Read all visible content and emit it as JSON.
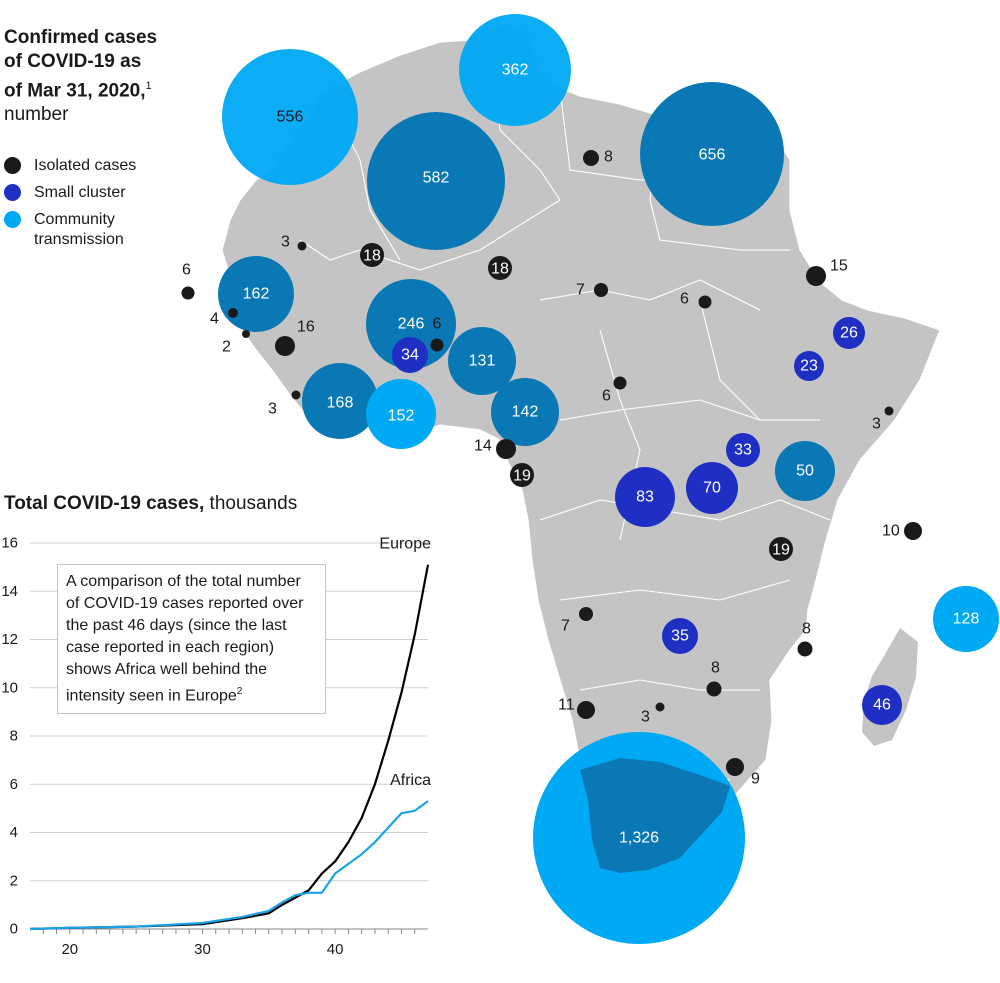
{
  "title": {
    "line1": "Confirmed cases",
    "line2": "of COVID-19 as",
    "line3": "of Mar 31, 2020,",
    "note": "1",
    "unit": "number"
  },
  "legend": [
    {
      "label": "Isolated cases",
      "color": "#1a1a1a"
    },
    {
      "label": "Small cluster",
      "color": "#1f2fc4"
    },
    {
      "label": "Community transmission",
      "color": "#00a9f4"
    }
  ],
  "colors": {
    "land": "#c4c4c4",
    "border": "#ffffff",
    "isolated": "#1a1a1a",
    "cluster": "#1f2fc4",
    "community": "#00a9f4",
    "community_on_land": "#0a78b5",
    "europe_line": "#000000",
    "africa_line": "#1aa3e8"
  },
  "map_labels": {
    "c1": "556",
    "c2": "362",
    "c3": "582",
    "c4": "656",
    "c5": "162",
    "c6": "246",
    "c7": "131",
    "c8": "168",
    "c9": "152",
    "c10": "142",
    "c11": "50",
    "c12": "128",
    "c13": "1,326",
    "s1": "34",
    "s2": "26",
    "s3": "23",
    "s4": "33",
    "s5": "83",
    "s6": "70",
    "s7": "35",
    "s8": "46",
    "i_inside_1": "18",
    "i_inside_2": "18",
    "i_inside_3": "19",
    "i_inside_4": "19",
    "i1": "8",
    "i2": "3",
    "i3": "6",
    "i4": "4",
    "i5": "2",
    "i6": "16",
    "i7": "6",
    "i8": "3",
    "i9": "14",
    "i10": "7",
    "i11": "6",
    "i12": "15",
    "i13": "6",
    "i14": "3",
    "i15": "10",
    "i16": "7",
    "i17": "8",
    "i18": "8",
    "i19": "11",
    "i20": "3",
    "i21": "9"
  },
  "chart": {
    "title_bold": "Total COVID-19 cases,",
    "title_rest": " thousands",
    "annotation": "A comparison of the total number of COVID-19 cases reported over the past 46 days (since the last case reported in each region) shows Africa well behind the intensity seen in Europe",
    "annotation_note": "2"
  },
  "chart_data": {
    "type": "line",
    "title": "Total COVID-19 cases, thousands",
    "xlabel": "",
    "ylabel": "",
    "xlim": [
      17,
      47
    ],
    "ylim": [
      0,
      16
    ],
    "x_ticks": [
      "20",
      "30",
      "40"
    ],
    "y_ticks": [
      "0",
      "2",
      "4",
      "6",
      "8",
      "10",
      "12",
      "14",
      "16"
    ],
    "series": [
      {
        "name": "Europe",
        "x": [
          17,
          20,
          25,
          30,
          33,
          35,
          36,
          37,
          38,
          39,
          40,
          41,
          42,
          43,
          44,
          45,
          46,
          47
        ],
        "values": [
          0,
          0.05,
          0.1,
          0.2,
          0.45,
          0.65,
          1.0,
          1.3,
          1.6,
          2.3,
          2.8,
          3.6,
          4.6,
          6.0,
          7.8,
          9.8,
          12.2,
          15.1
        ]
      },
      {
        "name": "Africa",
        "x": [
          17,
          20,
          25,
          30,
          33,
          35,
          36,
          37,
          38,
          39,
          40,
          41,
          42,
          43,
          44,
          45,
          46,
          47
        ],
        "values": [
          0,
          0.05,
          0.1,
          0.25,
          0.5,
          0.75,
          1.1,
          1.4,
          1.5,
          1.5,
          2.3,
          2.7,
          3.1,
          3.6,
          4.2,
          4.8,
          4.9,
          5.3
        ]
      }
    ]
  }
}
